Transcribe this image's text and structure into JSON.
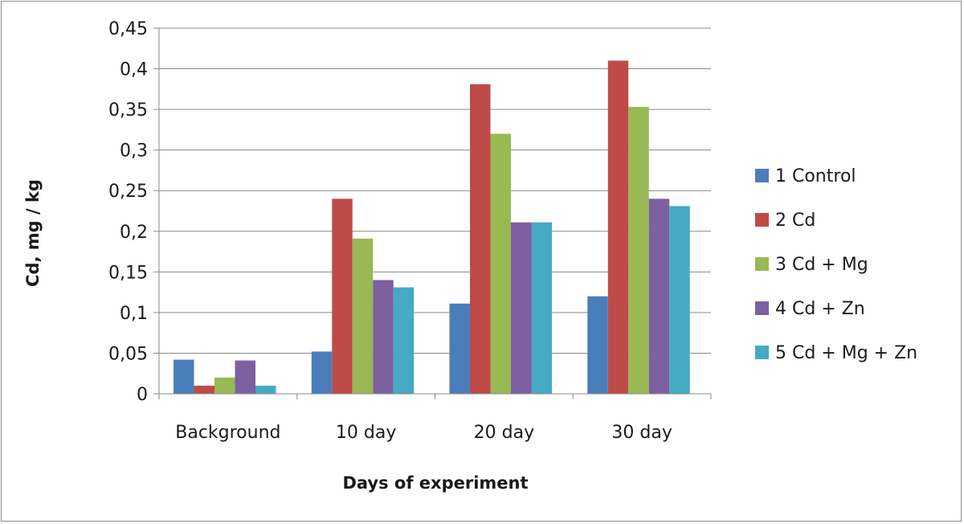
{
  "chart_data": {
    "type": "bar",
    "categories": [
      "Background",
      "10 day",
      "20 day",
      "30 day"
    ],
    "series": [
      {
        "name": "1 Control",
        "color": "#4a7ebb",
        "values": [
          0.042,
          0.052,
          0.111,
          0.12
        ]
      },
      {
        "name": "2 Cd",
        "color": "#be4b48",
        "values": [
          0.01,
          0.24,
          0.381,
          0.41
        ]
      },
      {
        "name": " 3 Cd + Mg",
        "color": "#98b954",
        "values": [
          0.02,
          0.191,
          0.32,
          0.353
        ]
      },
      {
        "name": "4 Cd + Zn",
        "color": "#7d60a0",
        "values": [
          0.041,
          0.14,
          0.211,
          0.24
        ]
      },
      {
        "name": "5 Cd + Mg + Zn",
        "color": "#46aac4",
        "values": [
          0.01,
          0.131,
          0.211,
          0.231
        ]
      }
    ],
    "xlabel": "Days of experiment",
    "ylabel": "Cd, mg / kg",
    "ylim": [
      0,
      0.45
    ],
    "yticks": [
      "0",
      "0,05",
      "0,1",
      "0,15",
      "0,2",
      "0,25",
      "0,3",
      "0,35",
      "0,4",
      "0,45"
    ],
    "grid": true,
    "legend_position": "right"
  }
}
